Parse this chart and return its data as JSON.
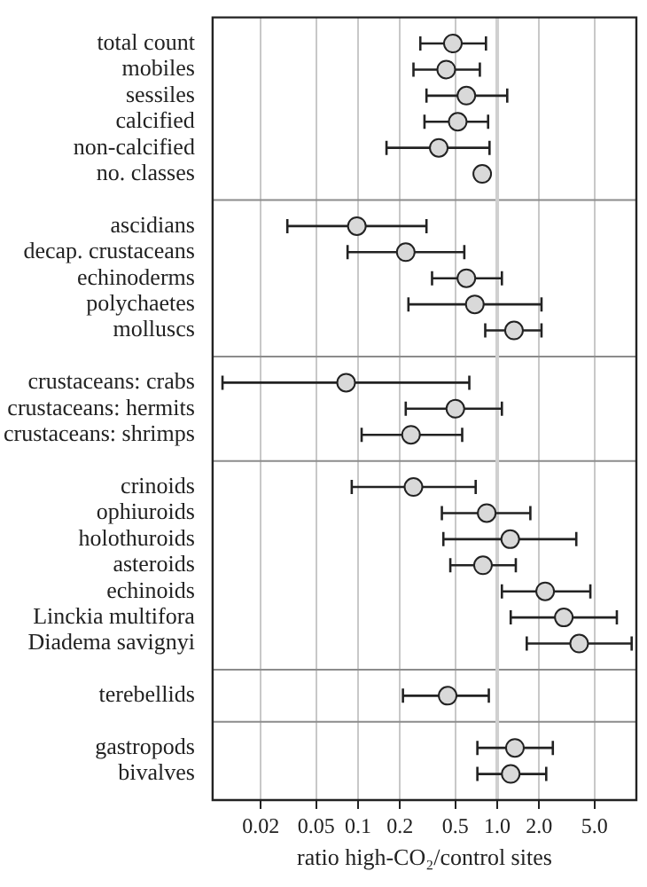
{
  "chart_data": {
    "type": "scatter",
    "orientation": "horizontal",
    "xlabel": "ratio high-CO₂/control sites",
    "log": "x",
    "grid": "x",
    "marker": "circle",
    "color": "#d9d9d9",
    "categories": [
      "total count",
      "mobiles",
      "sessiles",
      "calcified",
      "non-calcified",
      "no. classes",
      null,
      "ascidians",
      "decap. crustaceans",
      "echinoderms",
      "polychaetes",
      "molluscs",
      null,
      "crustaceans: crabs",
      "crustaceans: hermits",
      "crustaceans: shrimps",
      null,
      "crinoids",
      "ophiuroids",
      "holothuroids",
      "asteroids",
      "echinoids",
      "Linckia multifora",
      "Diadema savignyi",
      null,
      "terebellids",
      null,
      "gastropods",
      "bivalves"
    ],
    "values": [
      0.48,
      0.43,
      0.6,
      0.52,
      0.38,
      0.78,
      null,
      0.098,
      0.22,
      0.6,
      0.69,
      1.32,
      null,
      0.082,
      0.5,
      0.24,
      null,
      0.25,
      0.84,
      1.24,
      0.79,
      2.21,
      3.01,
      3.88,
      null,
      0.44,
      null,
      1.34,
      1.25
    ],
    "errors": [
      [
        0.28,
        0.83
      ],
      [
        0.25,
        0.75
      ],
      [
        0.31,
        1.18
      ],
      [
        0.3,
        0.86
      ],
      [
        0.16,
        0.88
      ],
      [
        0.72,
        0.86
      ],
      null,
      [
        0.031,
        0.31
      ],
      [
        0.084,
        0.58
      ],
      [
        0.34,
        1.08
      ],
      [
        0.23,
        2.08
      ],
      [
        0.82,
        2.08
      ],
      null,
      [
        0.0106,
        0.63
      ],
      [
        0.22,
        1.08
      ],
      [
        0.106,
        0.56
      ],
      null,
      [
        0.09,
        0.7
      ],
      [
        0.4,
        1.73
      ],
      [
        0.41,
        3.7
      ],
      [
        0.46,
        1.36
      ],
      [
        1.08,
        4.67
      ],
      [
        1.25,
        7.24
      ],
      [
        1.63,
        9.25
      ],
      null,
      [
        0.21,
        0.87
      ],
      null,
      [
        0.72,
        2.51
      ],
      [
        0.72,
        2.25
      ]
    ],
    "xlim": [
      0.009,
      10
    ],
    "xticks": [
      0.02,
      0.05,
      0.1,
      0.2,
      0.5,
      {
        "value": 1,
        "label": "1.0"
      },
      {
        "value": 2,
        "label": "2.0"
      },
      {
        "value": 5,
        "label": "5.0"
      }
    ],
    "ref_lines": [
      {
        "axis": "x",
        "value": 1,
        "color": "#d0d0d0"
      }
    ]
  }
}
